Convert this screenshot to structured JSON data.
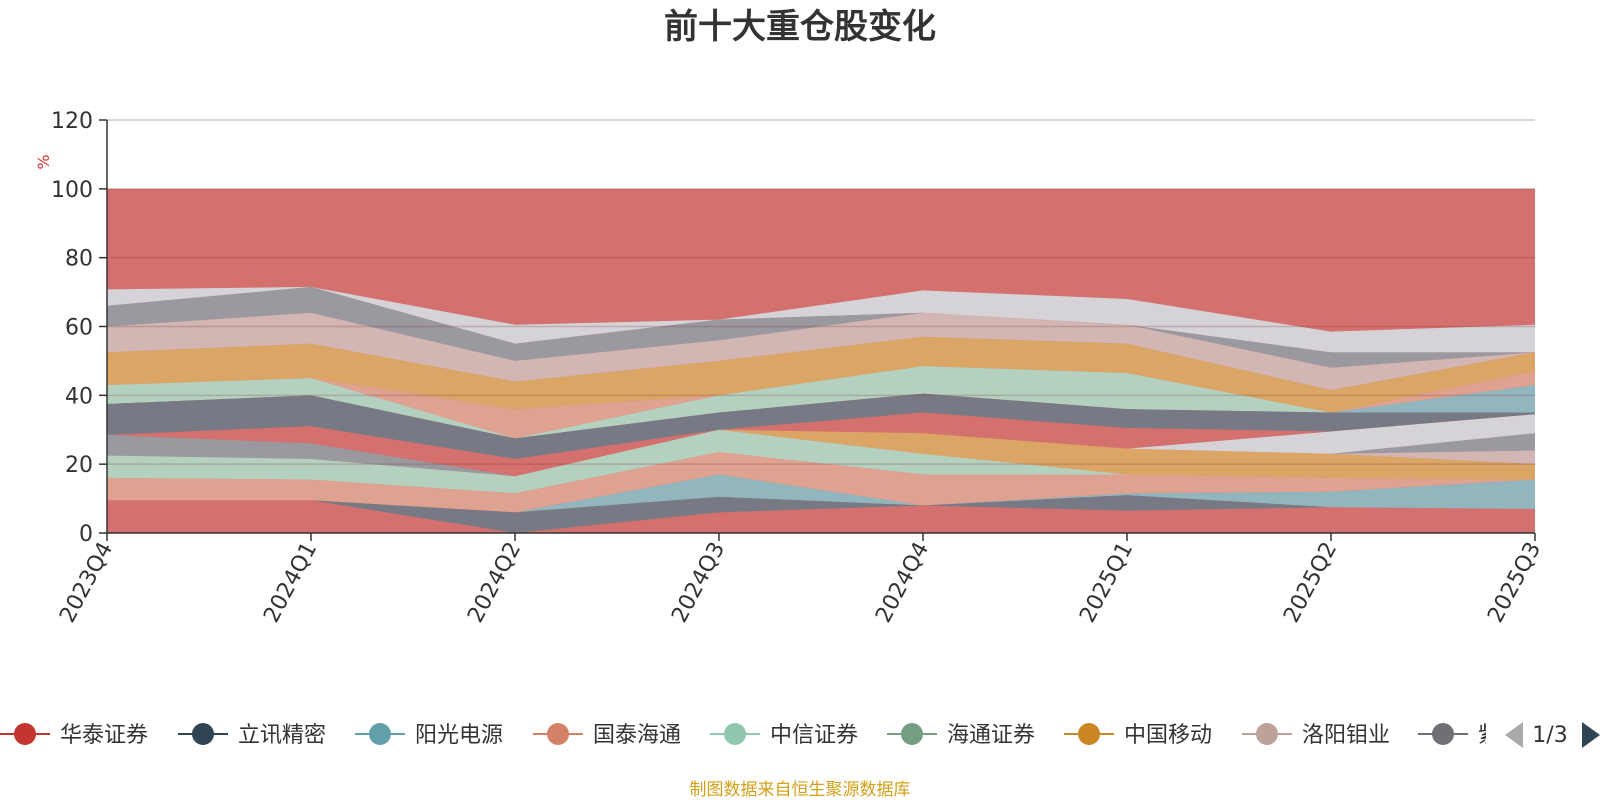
{
  "chart_data": {
    "type": "area",
    "title": "前十大重仓股变化",
    "ylabel": "%",
    "ylim": [
      0,
      120
    ],
    "yticks": [
      0,
      20,
      40,
      60,
      80,
      100,
      120
    ],
    "categories": [
      "2023Q4",
      "2024Q1",
      "2024Q2",
      "2024Q3",
      "2024Q4",
      "2025Q1",
      "2025Q2",
      "2025Q3"
    ],
    "grid": true,
    "legend_position": "bottom",
    "legend_page": "1/3",
    "source_note": "制图数据来自恒生聚源数据库",
    "bands": [
      {
        "color": "#d4706e",
        "lower": [
          0,
          0,
          0,
          0,
          0,
          0,
          0,
          0
        ],
        "upper": [
          100,
          100,
          100,
          100,
          100,
          100,
          100,
          100
        ]
      },
      {
        "color": "#d5dbe1",
        "lower": [
          66,
          71.5,
          55,
          62,
          64,
          60.5,
          52.5,
          52.5
        ],
        "upper": [
          70.8,
          71.5,
          60.5,
          62,
          70.5,
          68,
          58.5,
          60.5
        ]
      },
      {
        "color": "#959ca4",
        "lower": [
          60,
          64,
          50,
          56,
          64,
          60.5,
          48,
          52.5
        ],
        "upper": [
          66,
          71.5,
          55,
          62,
          64,
          60.5,
          52.5,
          52.5
        ]
      },
      {
        "color": "#d0bcb8",
        "lower": [
          52.5,
          55,
          44,
          50,
          57,
          55,
          41.5,
          52.5
        ],
        "upper": [
          60,
          64,
          50,
          56,
          64,
          60.5,
          48,
          52.5
        ]
      },
      {
        "color": "#dbaa64",
        "lower": [
          43,
          45,
          36,
          40,
          48.5,
          46.5,
          35,
          47
        ],
        "upper": [
          52.5,
          55,
          44,
          50,
          57,
          55,
          41.5,
          52.5
        ]
      },
      {
        "color": "#e0a592",
        "lower": [
          43,
          45,
          27.5,
          40,
          48.5,
          46.5,
          35,
          43
        ],
        "upper": [
          43,
          45,
          36,
          40,
          48.5,
          46.5,
          35,
          47
        ]
      },
      {
        "color": "#8cbcc4",
        "lower": [
          43,
          45,
          27.5,
          40,
          48.5,
          46.5,
          35,
          35
        ],
        "upper": [
          43,
          45,
          27.5,
          40,
          48.5,
          46.5,
          35,
          43
        ]
      },
      {
        "color": "#b1d9c5",
        "lower": [
          37.5,
          40,
          27.5,
          35,
          40.5,
          36,
          35,
          35
        ],
        "upper": [
          43,
          45,
          27.5,
          40,
          48.5,
          46.5,
          35,
          35
        ]
      },
      {
        "color": "#6f7b85",
        "lower": [
          28.5,
          31,
          21.5,
          30,
          35,
          30.5,
          29.5,
          34.5
        ],
        "upper": [
          37.5,
          40,
          27.5,
          35,
          40.5,
          36,
          35,
          35
        ]
      },
      {
        "color": "#d4706e",
        "lower": [
          28.5,
          26,
          16.5,
          30,
          29,
          24.5,
          23,
          29
        ],
        "upper": [
          28.5,
          31,
          21.5,
          30,
          35,
          30.5,
          29.5,
          34.5
        ]
      },
      {
        "color": "#d5dbe1",
        "lower": [
          28.5,
          26,
          16.5,
          30,
          29,
          24.5,
          23,
          29
        ],
        "upper": [
          28.5,
          26,
          16.5,
          30,
          29,
          24.5,
          29.5,
          34.5
        ]
      },
      {
        "color": "#959ca4",
        "lower": [
          22.5,
          21.5,
          16.5,
          30,
          29,
          24.5,
          23,
          24
        ],
        "upper": [
          28.5,
          26,
          16.5,
          30,
          29,
          24.5,
          23,
          29
        ]
      },
      {
        "color": "#d0bcb8",
        "lower": [
          22.5,
          21.5,
          16.5,
          30,
          29,
          24.5,
          23,
          20
        ],
        "upper": [
          22.5,
          21.5,
          16.5,
          30,
          29,
          24.5,
          23,
          24
        ]
      },
      {
        "color": "#dbaa64",
        "lower": [
          22.5,
          21.5,
          16.5,
          30,
          23,
          17,
          16,
          15.5
        ],
        "upper": [
          22.5,
          21.5,
          16.5,
          30,
          29,
          24.5,
          23,
          20
        ]
      },
      {
        "color": "#b1d9c5",
        "lower": [
          16,
          15.5,
          11.5,
          23.5,
          17,
          17,
          16,
          15.5
        ],
        "upper": [
          22.5,
          21.5,
          16.5,
          30,
          23,
          17,
          16,
          15.5
        ]
      },
      {
        "color": "#e0a592",
        "lower": [
          9.5,
          9.5,
          6,
          17,
          8,
          11.5,
          12,
          15.5
        ],
        "upper": [
          16,
          15.5,
          11.5,
          23.5,
          17,
          17,
          16,
          15.5
        ]
      },
      {
        "color": "#8cbcc4",
        "lower": [
          9.5,
          9.5,
          6,
          10.5,
          8,
          11,
          7.5,
          7
        ],
        "upper": [
          9.5,
          9.5,
          6,
          17,
          8,
          11.5,
          12,
          15.5
        ]
      },
      {
        "color": "#6f7b85",
        "lower": [
          9.5,
          9.5,
          0,
          6,
          8,
          6.5,
          7.5,
          7
        ],
        "upper": [
          9.5,
          9.5,
          6,
          10.5,
          8,
          11,
          7.5,
          7
        ]
      }
    ],
    "series": [
      {
        "name": "华泰证券",
        "color": "#c23531"
      },
      {
        "name": "立讯精密",
        "color": "#2f4554"
      },
      {
        "name": "阳光电源",
        "color": "#61a0a8"
      },
      {
        "name": "国泰海通",
        "color": "#d48265"
      },
      {
        "name": "中信证券",
        "color": "#91c7ae"
      },
      {
        "name": "海通证券",
        "color": "#749f83"
      },
      {
        "name": "中国移动",
        "color": "#ca8622"
      },
      {
        "name": "洛阳钼业",
        "color": "#bda29a"
      },
      {
        "name": "紫",
        "color": "#6e7074"
      }
    ]
  }
}
